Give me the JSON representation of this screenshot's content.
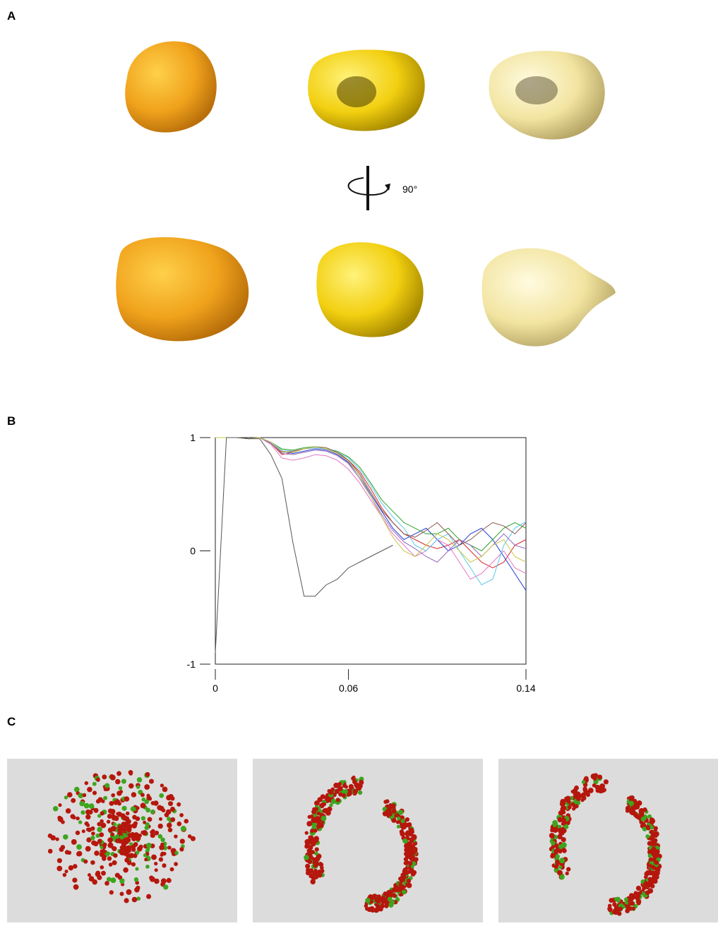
{
  "panels": {
    "a": {
      "label": "A",
      "rotation": "90°"
    },
    "b": {
      "label": "B"
    },
    "c": {
      "label": "C"
    }
  },
  "chart_data": {
    "type": "line",
    "x": [
      0,
      0.005,
      0.01,
      0.015,
      0.02,
      0.025,
      0.03,
      0.035,
      0.04,
      0.045,
      0.05,
      0.055,
      0.06,
      0.065,
      0.07,
      0.075,
      0.08,
      0.085,
      0.09,
      0.095,
      0.1,
      0.105,
      0.11,
      0.115,
      0.12,
      0.125,
      0.13,
      0.135,
      0.14
    ],
    "series": [
      {
        "color": "#d62728",
        "values": [
          1,
          1,
          1,
          0.99,
          1,
          0.95,
          0.85,
          0.87,
          0.9,
          0.91,
          0.9,
          0.86,
          0.8,
          0.7,
          0.55,
          0.38,
          0.25,
          0.15,
          0.1,
          0.05,
          0.02,
          0.05,
          0.1,
          0.0,
          -0.1,
          -0.15,
          -0.1,
          0.05,
          0.1
        ]
      },
      {
        "color": "#1f3fd6",
        "values": [
          1,
          1,
          1,
          0.99,
          1,
          0.96,
          0.88,
          0.86,
          0.88,
          0.9,
          0.89,
          0.85,
          0.78,
          0.66,
          0.5,
          0.35,
          0.2,
          0.1,
          0.15,
          0.2,
          0.1,
          0.0,
          0.05,
          0.15,
          0.2,
          0.1,
          -0.05,
          -0.2,
          -0.35
        ]
      },
      {
        "color": "#2ca02c",
        "values": [
          1,
          1,
          1,
          0.99,
          1,
          0.96,
          0.9,
          0.89,
          0.91,
          0.92,
          0.9,
          0.88,
          0.83,
          0.74,
          0.6,
          0.45,
          0.35,
          0.25,
          0.2,
          0.15,
          0.15,
          0.2,
          0.1,
          0.05,
          0.0,
          0.1,
          0.2,
          0.25,
          0.2
        ]
      },
      {
        "color": "#e377c2",
        "values": [
          1,
          1,
          1,
          0.99,
          1,
          0.94,
          0.82,
          0.8,
          0.82,
          0.85,
          0.84,
          0.8,
          0.72,
          0.6,
          0.45,
          0.3,
          0.15,
          0.05,
          -0.05,
          0.0,
          0.1,
          0.05,
          -0.1,
          -0.25,
          -0.2,
          -0.1,
          0.0,
          -0.15,
          -0.2
        ]
      },
      {
        "color": "#5bc8e8",
        "values": [
          1,
          1,
          1,
          0.99,
          1,
          0.96,
          0.89,
          0.88,
          0.9,
          0.91,
          0.9,
          0.87,
          0.82,
          0.72,
          0.58,
          0.42,
          0.3,
          0.2,
          0.05,
          0.0,
          0.1,
          0.15,
          0.0,
          -0.15,
          -0.3,
          -0.25,
          0.05,
          0.2,
          0.26
        ]
      },
      {
        "color": "#8c564b",
        "values": [
          1,
          1,
          1,
          0.99,
          1,
          0.95,
          0.87,
          0.88,
          0.9,
          0.92,
          0.91,
          0.87,
          0.8,
          0.68,
          0.52,
          0.36,
          0.25,
          0.15,
          0.12,
          0.18,
          0.25,
          0.15,
          0.05,
          0.1,
          0.18,
          0.25,
          0.22,
          0.15,
          0.25
        ]
      },
      {
        "color": "#9467bd",
        "values": [
          1,
          1,
          1,
          0.99,
          1,
          0.95,
          0.86,
          0.85,
          0.87,
          0.89,
          0.88,
          0.84,
          0.77,
          0.64,
          0.48,
          0.32,
          0.18,
          0.08,
          0.02,
          -0.05,
          -0.1,
          0.0,
          0.1,
          0.05,
          -0.05,
          0.05,
          0.15,
          0.05,
          0.02
        ]
      },
      {
        "color": "#c8c84a",
        "values": [
          1,
          1,
          1,
          0.99,
          1,
          0.96,
          0.88,
          0.87,
          0.9,
          0.92,
          0.9,
          0.86,
          0.79,
          0.66,
          0.48,
          0.3,
          0.12,
          0.0,
          -0.05,
          0.05,
          0.15,
          0.1,
          0.0,
          -0.1,
          -0.05,
          0.05,
          0.1,
          -0.05,
          -0.1
        ]
      },
      {
        "color": "#555555",
        "values": [
          -0.9,
          1,
          1,
          0.99,
          0.99,
          0.85,
          0.64,
          0.07,
          -0.4,
          -0.4,
          -0.3,
          -0.25,
          -0.15,
          -0.1,
          -0.05,
          0.0,
          0.05,
          null,
          null,
          null,
          null,
          null,
          null,
          null,
          null,
          null,
          null,
          null,
          null
        ]
      }
    ],
    "xlim": [
      0,
      0.14
    ],
    "ylim": [
      -1,
      1
    ],
    "xticks": [
      0,
      0.06,
      0.14
    ],
    "yticks": [
      -1,
      0,
      1
    ]
  }
}
